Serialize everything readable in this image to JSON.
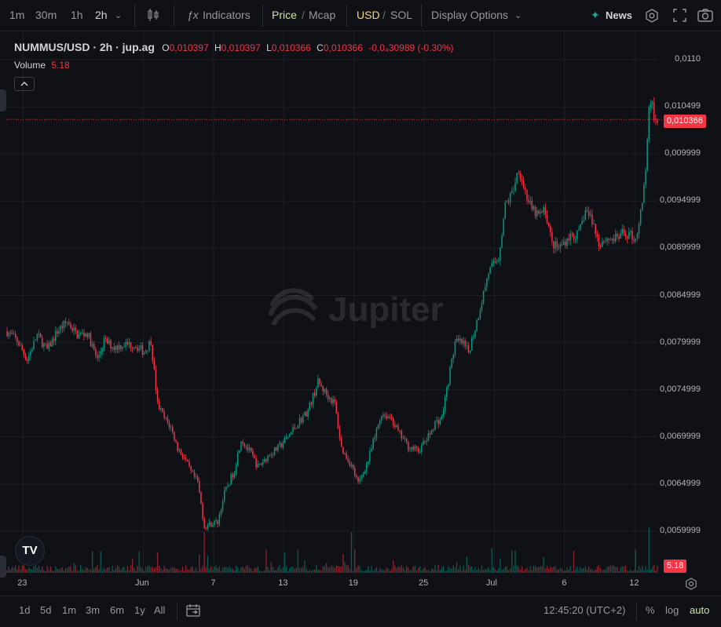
{
  "toolbar": {
    "intervals": [
      "1m",
      "30m",
      "1h",
      "2h"
    ],
    "active_interval": "2h",
    "indicators_label": "Indicators",
    "price_label": "Price",
    "slash": "/",
    "mcap_label": "Mcap",
    "usd_label": "USD",
    "sol_label": "SOL",
    "display_options_label": "Display Options",
    "news_label": "News"
  },
  "legend": {
    "symbol": "NUMMUS/USD · 2h · jup.ag",
    "o_label": "O",
    "o_value": "0,010397",
    "h_label": "H",
    "h_value": "0,010397",
    "l_label": "L",
    "l_value": "0,010366",
    "c_label": "C",
    "c_value": "0,010366",
    "change": "-0,0₄30989 (-0.30%)",
    "volume_label": "Volume",
    "volume_value": "5.18"
  },
  "watermark": "Jupiter",
  "tv_logo": "TV",
  "last_price_tag": "0,010366",
  "volume_tag": "5.18",
  "bottom": {
    "ranges": [
      "1d",
      "5d",
      "1m",
      "3m",
      "6m",
      "1y",
      "All"
    ],
    "time": "12:45:20 (UTC+2)",
    "percent_label": "%",
    "log_label": "log",
    "auto_label": "auto"
  },
  "colors": {
    "up": "#089981",
    "down": "#f23645",
    "bg": "#0f1116",
    "grid": "#1c1f26"
  },
  "chart_data": {
    "type": "candlestick",
    "ylim": [
      0.00575,
      0.01115
    ],
    "y_ticks": [
      "0,0110",
      "0,010499",
      "0,009999",
      "0,0094999",
      "0,0089999",
      "0,0084999",
      "0,0079999",
      "0,0074999",
      "0,0069999",
      "0,0064999",
      "0,0059999"
    ],
    "y_tick_values": [
      0.011,
      0.010499,
      0.009999,
      0.0094999,
      0.0089999,
      0.0084999,
      0.0079999,
      0.0074999,
      0.0069999,
      0.0064999,
      0.0059999
    ],
    "x_ticks": [
      "23",
      "Jun",
      "7",
      "13",
      "19",
      "25",
      "Jul",
      "6",
      "12"
    ],
    "x_tick_index": [
      10,
      82,
      124,
      166,
      208,
      250,
      292,
      334,
      376
    ],
    "last_price": 0.010366,
    "close_path": [
      [
        0,
        0.00812
      ],
      [
        6,
        0.00802
      ],
      [
        12,
        0.00782
      ],
      [
        18,
        0.00808
      ],
      [
        24,
        0.00792
      ],
      [
        30,
        0.00812
      ],
      [
        36,
        0.00822
      ],
      [
        42,
        0.00808
      ],
      [
        48,
        0.0081
      ],
      [
        54,
        0.00782
      ],
      [
        58,
        0.00802
      ],
      [
        64,
        0.00795
      ],
      [
        70,
        0.00798
      ],
      [
        76,
        0.00798
      ],
      [
        82,
        0.0079
      ],
      [
        86,
        0.00802
      ],
      [
        90,
        0.00735
      ],
      [
        94,
        0.0072
      ],
      [
        98,
        0.0071
      ],
      [
        102,
        0.00688
      ],
      [
        106,
        0.00678
      ],
      [
        110,
        0.00662
      ],
      [
        114,
        0.00652
      ],
      [
        118,
        0.00605
      ],
      [
        122,
        0.00608
      ],
      [
        126,
        0.0061
      ],
      [
        130,
        0.0064
      ],
      [
        136,
        0.00665
      ],
      [
        140,
        0.00698
      ],
      [
        146,
        0.00682
      ],
      [
        150,
        0.00668
      ],
      [
        156,
        0.0068
      ],
      [
        162,
        0.00688
      ],
      [
        168,
        0.007
      ],
      [
        174,
        0.00715
      ],
      [
        180,
        0.00728
      ],
      [
        186,
        0.00758
      ],
      [
        190,
        0.00748
      ],
      [
        196,
        0.00735
      ],
      [
        200,
        0.00688
      ],
      [
        206,
        0.0067
      ],
      [
        210,
        0.0065
      ],
      [
        216,
        0.00675
      ],
      [
        220,
        0.007
      ],
      [
        224,
        0.00725
      ],
      [
        230,
        0.0072
      ],
      [
        234,
        0.00705
      ],
      [
        240,
        0.0069
      ],
      [
        246,
        0.00685
      ],
      [
        252,
        0.007
      ],
      [
        256,
        0.00715
      ],
      [
        260,
        0.0072
      ],
      [
        264,
        0.0076
      ],
      [
        268,
        0.008
      ],
      [
        272,
        0.008
      ],
      [
        276,
        0.0079
      ],
      [
        280,
        0.00815
      ],
      [
        284,
        0.00845
      ],
      [
        288,
        0.00875
      ],
      [
        294,
        0.0089
      ],
      [
        298,
        0.00945
      ],
      [
        302,
        0.00958
      ],
      [
        306,
        0.00985
      ],
      [
        310,
        0.0096
      ],
      [
        314,
        0.0094
      ],
      [
        318,
        0.00935
      ],
      [
        322,
        0.0094
      ],
      [
        326,
        0.00905
      ],
      [
        330,
        0.009
      ],
      [
        336,
        0.00912
      ],
      [
        342,
        0.00915
      ],
      [
        346,
        0.0094
      ],
      [
        350,
        0.0093
      ],
      [
        354,
        0.00905
      ],
      [
        358,
        0.0091
      ],
      [
        364,
        0.0091
      ],
      [
        368,
        0.00915
      ],
      [
        372,
        0.00915
      ],
      [
        376,
        0.0091
      ],
      [
        380,
        0.00945
      ],
      [
        382,
        0.00985
      ],
      [
        384,
        0.01045
      ],
      [
        386,
        0.0105
      ],
      [
        388,
        0.01035
      ],
      [
        390,
        0.01037
      ]
    ],
    "candle_count": 390
  }
}
